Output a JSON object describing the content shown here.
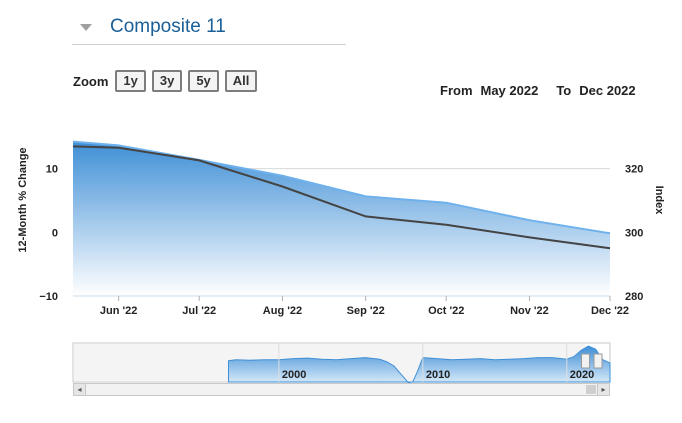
{
  "header": {
    "title": "Composite 11"
  },
  "zoom": {
    "label": "Zoom",
    "buttons": [
      "1y",
      "3y",
      "5y",
      "All"
    ]
  },
  "range": {
    "from_label": "From",
    "from_value": "May 2022",
    "to_label": "To",
    "to_value": "Dec 2022"
  },
  "colors": {
    "area_top": "#3f8fd6",
    "area_bottom": "#ffffff",
    "index_line": "#6fb1ec",
    "change_line": "#444444",
    "title": "#1a5f97"
  },
  "chart_data": {
    "type": "line",
    "x": [
      "2022-05-15",
      "2022-06-01",
      "2022-07-01",
      "2022-08-01",
      "2022-09-01",
      "2022-10-01",
      "2022-11-01",
      "2022-12-01"
    ],
    "xtick_labels": [
      "Jun '22",
      "Jul '22",
      "Aug '22",
      "Sep '22",
      "Oct '22",
      "Nov '22",
      "Dec '22"
    ],
    "series": [
      {
        "axis": "left",
        "style": "line",
        "values": [
          13.5,
          13.3,
          11.3,
          7.2,
          2.5,
          1.2,
          -0.8,
          -2.5
        ]
      },
      {
        "axis": "right",
        "style": "area",
        "values": [
          328.5,
          327.3,
          322.8,
          317.8,
          311.3,
          309.3,
          303.8,
          299.7
        ]
      }
    ],
    "left_axis": {
      "label": "12-Month % Change",
      "ticks": [
        "10",
        "0",
        "−10"
      ],
      "tick_values": [
        10,
        0,
        -10
      ],
      "range": [
        -10,
        20
      ]
    },
    "right_axis": {
      "label": "Index",
      "ticks": [
        "320",
        "300",
        "280"
      ],
      "tick_values": [
        320,
        300,
        280
      ],
      "range": [
        280,
        340
      ]
    },
    "navigator": {
      "tick_labels": [
        "2000",
        "2010",
        "2020"
      ],
      "x": [
        1996.5,
        1997,
        1998,
        1999,
        2000,
        2001,
        2002,
        2003,
        2004,
        2005,
        2006,
        2007,
        2007.5,
        2008,
        2008.5,
        2009,
        2009.3,
        2009.6,
        2010,
        2011,
        2012,
        2013,
        2014,
        2015,
        2016,
        2017,
        2018,
        2019,
        2020,
        2020.5,
        2021,
        2021.5,
        2022,
        2022.5,
        2023
      ],
      "values": [
        5,
        6,
        5.5,
        6,
        6,
        7,
        7.5,
        6.5,
        6,
        7,
        8,
        6.5,
        4,
        0,
        -8,
        -16,
        -15,
        -6,
        8,
        7,
        6,
        6.5,
        7,
        6,
        6.5,
        7,
        8,
        8,
        6.5,
        9,
        15,
        19,
        16,
        6,
        3
      ]
    }
  }
}
